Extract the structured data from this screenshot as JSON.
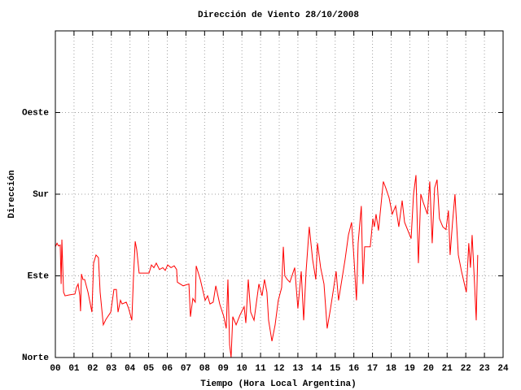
{
  "chart_data": {
    "type": "line",
    "title": "Dirección de Viento 28/10/2008",
    "xlabel": "Tiempo (Hora Local Argentina)",
    "ylabel": "Dirección",
    "color": "#ff0000",
    "grid": true,
    "xlim": [
      0,
      24
    ],
    "ylim": [
      0,
      360
    ],
    "xticks": [
      {
        "value": 0,
        "label": "00"
      },
      {
        "value": 1,
        "label": "01"
      },
      {
        "value": 2,
        "label": "02"
      },
      {
        "value": 3,
        "label": "03"
      },
      {
        "value": 4,
        "label": "04"
      },
      {
        "value": 5,
        "label": "05"
      },
      {
        "value": 6,
        "label": "06"
      },
      {
        "value": 7,
        "label": "07"
      },
      {
        "value": 8,
        "label": "08"
      },
      {
        "value": 9,
        "label": "09"
      },
      10,
      11,
      12,
      13,
      14,
      15,
      16,
      17,
      18,
      19,
      20,
      21,
      22,
      23,
      24
    ],
    "yticks": [
      {
        "value": 0,
        "label": "Norte"
      },
      {
        "value": 90,
        "label": "Este"
      },
      {
        "value": 180,
        "label": "Sur"
      },
      {
        "value": 270,
        "label": "Oeste"
      }
    ],
    "x": [
      0,
      0.09,
      0.17,
      0.26,
      0.31,
      0.35,
      0.44,
      0.52,
      0.74,
      1.05,
      1.13,
      1.22,
      1.31,
      1.35,
      1.4,
      1.48,
      1.57,
      1.75,
      1.96,
      2.05,
      2.18,
      2.31,
      2.4,
      2.57,
      2.71,
      2.97,
      3.14,
      3.27,
      3.36,
      3.49,
      3.58,
      3.8,
      3.93,
      4.1,
      4.19,
      4.28,
      4.36,
      4.49,
      5.02,
      5.15,
      5.28,
      5.41,
      5.58,
      5.76,
      5.89,
      6.02,
      6.2,
      6.37,
      6.5,
      6.54,
      6.85,
      7.16,
      7.24,
      7.37,
      7.5,
      7.55,
      7.77,
      8.03,
      8.16,
      8.29,
      8.46,
      8.6,
      8.81,
      9.03,
      9.16,
      9.25,
      9.34,
      9.42,
      9.51,
      9.69,
      9.9,
      10.12,
      10.21,
      10.34,
      10.47,
      10.65,
      10.91,
      11.08,
      11.21,
      11.34,
      11.43,
      11.61,
      11.78,
      11.95,
      12.13,
      12.22,
      12.3,
      12.43,
      12.57,
      12.83,
      13.0,
      13.18,
      13.31,
      13.44,
      13.61,
      13.79,
      13.96,
      14.05,
      14.22,
      14.4,
      14.57,
      14.75,
      14.92,
      15.05,
      15.18,
      15.36,
      15.53,
      15.71,
      15.88,
      16.01,
      16.14,
      16.23,
      16.4,
      16.49,
      16.58,
      16.88,
      17.02,
      17.1,
      17.19,
      17.32,
      17.45,
      17.58,
      17.71,
      17.89,
      18.06,
      18.24,
      18.41,
      18.59,
      18.72,
      19.07,
      19.2,
      19.33,
      19.46,
      19.59,
      19.72,
      19.94,
      20.07,
      20.2,
      20.33,
      20.46,
      20.59,
      20.77,
      20.94,
      21.07,
      21.16,
      21.29,
      21.42,
      21.6,
      21.77,
      22.03,
      22.16,
      22.25,
      22.34,
      22.47,
      22.56,
      22.64
    ],
    "values": [
      122,
      126,
      123,
      124,
      81,
      130,
      72,
      68,
      69,
      70,
      77,
      81,
      68,
      51,
      92,
      86,
      86,
      72,
      50,
      104,
      113,
      110,
      72,
      36,
      42,
      50,
      75,
      75,
      50,
      63,
      59,
      61,
      54,
      41,
      90,
      128,
      119,
      93,
      93,
      102,
      99,
      104,
      97,
      99,
      96,
      102,
      99,
      101,
      97,
      83,
      79,
      81,
      45,
      65,
      61,
      101,
      86,
      63,
      68,
      59,
      61,
      79,
      59,
      45,
      32,
      86,
      14,
      0,
      45,
      36,
      47,
      56,
      38,
      86,
      50,
      41,
      81,
      68,
      86,
      72,
      41,
      18,
      36,
      63,
      77,
      122,
      90,
      86,
      83,
      99,
      54,
      95,
      41,
      95,
      144,
      108,
      86,
      126,
      99,
      81,
      32,
      54,
      77,
      95,
      63,
      86,
      108,
      135,
      149,
      108,
      63,
      126,
      167,
      81,
      122,
      122,
      153,
      144,
      158,
      140,
      167,
      194,
      187,
      176,
      158,
      167,
      144,
      173,
      149,
      131,
      180,
      201,
      104,
      180,
      171,
      158,
      194,
      126,
      187,
      196,
      153,
      144,
      141,
      162,
      113,
      149,
      180,
      113,
      95,
      72,
      126,
      99,
      135,
      81,
      41,
      113
    ]
  }
}
